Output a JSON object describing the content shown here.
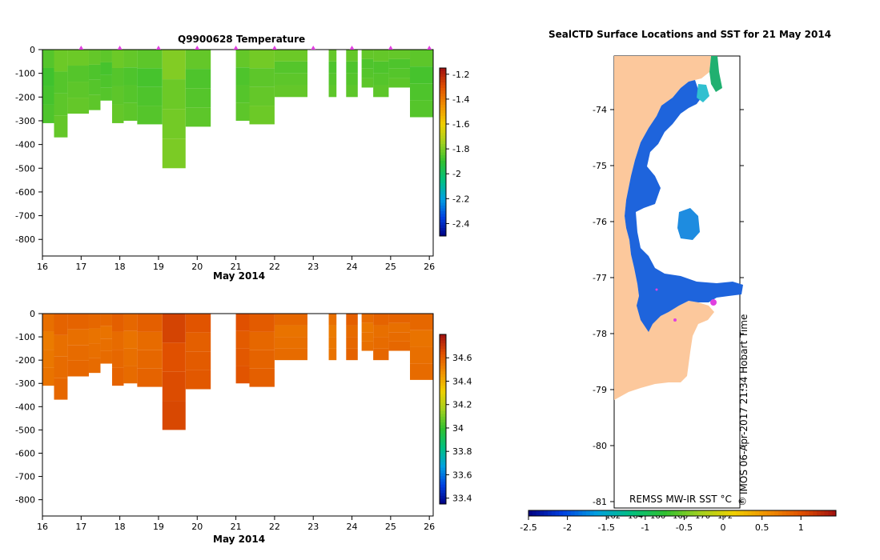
{
  "top_chart": {
    "title": "Q9900628  Temperature",
    "xlabel": "May 2014"
  },
  "bottom_chart": {
    "xlabel": "May 2014"
  },
  "map": {
    "title": "SealCTD Surface Locations and SST for 21 May 2014",
    "lat_labels": [
      "-74",
      "-75",
      "-76",
      "-77",
      "-78",
      "-79",
      "-80",
      "-81"
    ],
    "lon_labels": [
      "162",
      "164",
      "166",
      "168",
      "170",
      "172"
    ],
    "sst_label": "REMSS MW-IR SST °C",
    "credit": "IMOS 06-Apr-2017 21:34 Hobart Time",
    "copyright": "©",
    "land_color": "#fcc89c",
    "ice_color": "#1e64dc"
  },
  "sst_colorbar": {
    "ticks": [
      "-2.5",
      "-2",
      "-1.5",
      "-1",
      "-0.5",
      "0",
      "0.5",
      "1"
    ]
  },
  "chart_data": [
    {
      "type": "heatmap",
      "title": "Q9900628  Temperature",
      "xlabel": "May 2014",
      "ylabel": "",
      "xlim": [
        16,
        26.1
      ],
      "ylim": [
        -870,
        0
      ],
      "x_ticks": [
        16,
        17,
        18,
        19,
        20,
        21,
        22,
        23,
        24,
        25,
        26
      ],
      "y_ticks": [
        0,
        -100,
        -200,
        -300,
        -400,
        -500,
        -600,
        -700,
        -800
      ],
      "colorbar": {
        "min": -2.5,
        "max": -1.15,
        "ticks": [
          -1.2,
          -1.4,
          -1.6,
          -1.8,
          -2,
          -2.2,
          -2.4
        ]
      },
      "profiles": [
        {
          "t0": 16.0,
          "t1": 16.3,
          "depth": 310,
          "value": -1.88
        },
        {
          "t0": 16.3,
          "t1": 16.65,
          "depth": 370,
          "value": -1.86
        },
        {
          "t0": 16.65,
          "t1": 17.2,
          "depth": 270,
          "value": -1.87
        },
        {
          "t0": 17.2,
          "t1": 17.5,
          "depth": 255,
          "value": -1.86
        },
        {
          "t0": 17.5,
          "t1": 17.8,
          "depth": 215,
          "value": -1.88
        },
        {
          "t0": 17.8,
          "t1": 18.1,
          "depth": 310,
          "value": -1.87
        },
        {
          "t0": 18.1,
          "t1": 18.45,
          "depth": 300,
          "value": -1.86
        },
        {
          "t0": 18.45,
          "t1": 19.1,
          "depth": 315,
          "value": -1.88
        },
        {
          "t0": 19.1,
          "t1": 19.7,
          "depth": 500,
          "value": -1.84
        },
        {
          "t0": 19.7,
          "t1": 20.35,
          "depth": 325,
          "value": -1.86
        },
        {
          "t0": 21.0,
          "t1": 21.35,
          "depth": 300,
          "value": -1.87
        },
        {
          "t0": 21.35,
          "t1": 22.0,
          "depth": 315,
          "value": -1.86
        },
        {
          "t0": 22.0,
          "t1": 22.85,
          "depth": 200,
          "value": -1.85
        },
        {
          "t0": 23.4,
          "t1": 23.6,
          "depth": 200,
          "value": -1.87
        },
        {
          "t0": 23.85,
          "t1": 24.15,
          "depth": 200,
          "value": -1.88
        },
        {
          "t0": 24.25,
          "t1": 24.55,
          "depth": 160,
          "value": -1.86
        },
        {
          "t0": 24.55,
          "t1": 24.95,
          "depth": 200,
          "value": -1.87
        },
        {
          "t0": 24.95,
          "t1": 25.5,
          "depth": 160,
          "value": -1.88
        },
        {
          "t0": 25.5,
          "t1": 26.1,
          "depth": 285,
          "value": -1.87
        }
      ],
      "surface_markers": [
        17.0,
        18.0,
        19.0,
        20.0,
        21.0,
        22.0,
        23.0,
        24.0,
        25.0,
        26.0
      ]
    },
    {
      "type": "heatmap",
      "title": "",
      "xlabel": "May 2014",
      "ylabel": "",
      "xlim": [
        16,
        26.1
      ],
      "ylim": [
        -870,
        0
      ],
      "x_ticks": [
        16,
        17,
        18,
        19,
        20,
        21,
        22,
        23,
        24,
        25,
        26
      ],
      "y_ticks": [
        0,
        -100,
        -200,
        -300,
        -400,
        -500,
        -600,
        -700,
        -800
      ],
      "colorbar": {
        "min": 33.35,
        "max": 34.8,
        "ticks": [
          34.6,
          34.4,
          34.2,
          34,
          33.8,
          33.6,
          33.4
        ]
      },
      "profiles": [
        {
          "t0": 16.0,
          "t1": 16.3,
          "depth": 310,
          "value": 34.53
        },
        {
          "t0": 16.3,
          "t1": 16.65,
          "depth": 370,
          "value": 34.55
        },
        {
          "t0": 16.65,
          "t1": 17.2,
          "depth": 270,
          "value": 34.54
        },
        {
          "t0": 17.2,
          "t1": 17.5,
          "depth": 255,
          "value": 34.55
        },
        {
          "t0": 17.5,
          "t1": 17.8,
          "depth": 215,
          "value": 34.54
        },
        {
          "t0": 17.8,
          "t1": 18.1,
          "depth": 310,
          "value": 34.55
        },
        {
          "t0": 18.1,
          "t1": 18.45,
          "depth": 300,
          "value": 34.55
        },
        {
          "t0": 18.45,
          "t1": 19.1,
          "depth": 315,
          "value": 34.56
        },
        {
          "t0": 19.1,
          "t1": 19.7,
          "depth": 500,
          "value": 34.62
        },
        {
          "t0": 19.7,
          "t1": 20.35,
          "depth": 325,
          "value": 34.6
        },
        {
          "t0": 21.0,
          "t1": 21.35,
          "depth": 300,
          "value": 34.6
        },
        {
          "t0": 21.35,
          "t1": 22.0,
          "depth": 315,
          "value": 34.56
        },
        {
          "t0": 22.0,
          "t1": 22.85,
          "depth": 200,
          "value": 34.55
        },
        {
          "t0": 23.4,
          "t1": 23.6,
          "depth": 200,
          "value": 34.52
        },
        {
          "t0": 23.85,
          "t1": 24.15,
          "depth": 200,
          "value": 34.55
        },
        {
          "t0": 24.25,
          "t1": 24.55,
          "depth": 160,
          "value": 34.54
        },
        {
          "t0": 24.55,
          "t1": 24.95,
          "depth": 200,
          "value": 34.55
        },
        {
          "t0": 24.95,
          "t1": 25.5,
          "depth": 160,
          "value": 34.54
        },
        {
          "t0": 25.5,
          "t1": 26.1,
          "depth": 285,
          "value": 34.55
        }
      ],
      "surface_markers": []
    }
  ],
  "colors": {
    "marker": "#e040e0",
    "ramp": [
      "#000080",
      "#0040e0",
      "#00a0e0",
      "#00c080",
      "#30c030",
      "#a0d020",
      "#f0d000",
      "#f09000",
      "#e05000",
      "#a01010"
    ]
  }
}
